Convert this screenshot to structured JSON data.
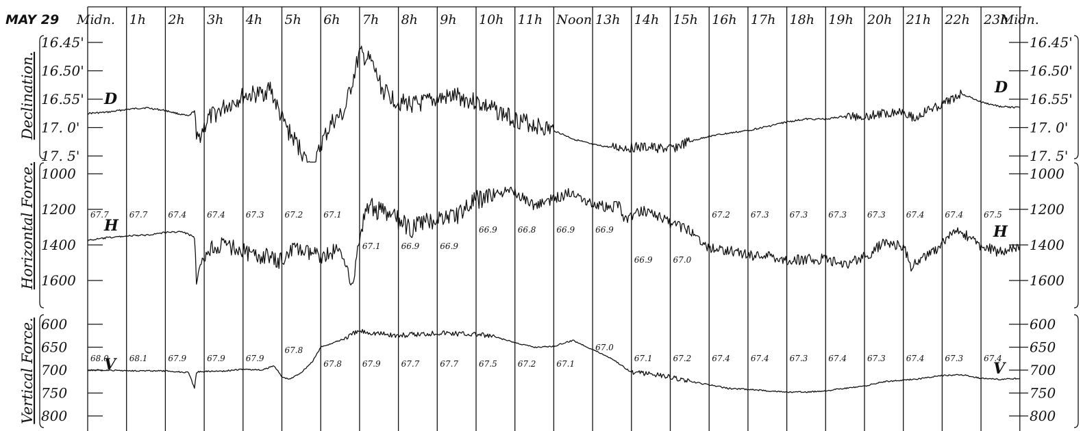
{
  "header": {
    "date": "MAY 29",
    "hours": [
      "Midn.",
      "1h",
      "2h",
      "3h",
      "4h",
      "5h",
      "6h",
      "7h",
      "8h",
      "9h",
      "10h",
      "11h",
      "Noon",
      "13h",
      "14h",
      "15h",
      "16h",
      "17h",
      "18h",
      "19h",
      "20h",
      "21h",
      "22h",
      "23h",
      "Midn."
    ]
  },
  "chart_data": [
    {
      "type": "line",
      "name": "declination",
      "ylabel": "Declination.",
      "curve_letter": "D",
      "x_unit": "hours",
      "left_ticks": [
        "16.45'",
        "16.50'",
        "16.55'",
        "17. 0'",
        "17. 5'"
      ],
      "right_ticks": [
        "16.45'",
        "16.50'",
        "16.55'",
        "17. 0'",
        "17. 5'"
      ],
      "ylim_minutes": [
        45,
        65
      ],
      "tick_values_minutes": [
        45,
        50,
        55,
        60,
        65
      ],
      "x": [
        0,
        0.5,
        1,
        1.5,
        2,
        2.6,
        2.75,
        2.8,
        3.1,
        3.5,
        4,
        4.5,
        4.7,
        4.8,
        5,
        5.2,
        5.5,
        5.8,
        6,
        6.3,
        6.6,
        7,
        7.3,
        7.6,
        8,
        8.5,
        9,
        9.5,
        10,
        10.5,
        11,
        11.5,
        12,
        12.5,
        13,
        13.5,
        14,
        14.5,
        15,
        15.5,
        16,
        16.5,
        17,
        17.5,
        18,
        18.5,
        19,
        19.5,
        20,
        20.5,
        21,
        21.3,
        21.6,
        22,
        22.5,
        23,
        23.5,
        24
      ],
      "y": [
        57.5,
        57.3,
        56.8,
        56.5,
        57.0,
        58.0,
        57.0,
        62.5,
        58.5,
        56.5,
        54.5,
        54.0,
        53.0,
        55.0,
        58.5,
        61.0,
        64.0,
        68.5,
        63.0,
        59.0,
        57.5,
        47.0,
        48.5,
        53.5,
        55.5,
        56.0,
        55.0,
        54.5,
        55.5,
        57.0,
        58.5,
        59.5,
        60.5,
        62.0,
        63.0,
        63.5,
        63.5,
        63.5,
        63.8,
        62.5,
        61.5,
        61.0,
        60.5,
        59.8,
        59.0,
        58.5,
        58.5,
        58.0,
        58.0,
        57.5,
        57.0,
        58.5,
        57.0,
        56.0,
        54.0,
        55.5,
        56.3,
        56.5
      ]
    },
    {
      "type": "line",
      "name": "horizontal_force",
      "ylabel": "Horizontal Force.",
      "curve_letter": "H",
      "x_unit": "hours",
      "left_ticks": [
        "1000",
        "1200",
        "1400",
        "1600"
      ],
      "right_ticks": [
        "1000",
        "1200",
        "1400",
        "1600"
      ],
      "ylim": [
        1000,
        1600
      ],
      "tick_values": [
        1000,
        1200,
        1400,
        1600
      ],
      "x": [
        0,
        0.5,
        1,
        1.5,
        2,
        2.4,
        2.6,
        2.75,
        2.8,
        3.1,
        3.5,
        4,
        4.3,
        4.6,
        4.9,
        5.3,
        5.7,
        6.1,
        6.4,
        6.65,
        6.8,
        7,
        7.2,
        7.5,
        7.9,
        8.3,
        8.6,
        9,
        9.5,
        10,
        10.5,
        11,
        11.5,
        12,
        12.5,
        13,
        13.5,
        13.7,
        13.8,
        14,
        14.3,
        14.6,
        14.9,
        15.2,
        15.6,
        16,
        16.5,
        17,
        17.5,
        18,
        18.5,
        19,
        19.5,
        20,
        20.5,
        21,
        21.2,
        21.5,
        21.8,
        22,
        22.3,
        22.6,
        23,
        23.5,
        24
      ],
      "y": [
        1375,
        1360,
        1350,
        1345,
        1330,
        1325,
        1340,
        1360,
        1610,
        1420,
        1400,
        1430,
        1470,
        1460,
        1500,
        1420,
        1450,
        1460,
        1430,
        1480,
        1650,
        1380,
        1170,
        1210,
        1250,
        1310,
        1280,
        1250,
        1230,
        1150,
        1110,
        1100,
        1180,
        1140,
        1100,
        1170,
        1190,
        1160,
        1260,
        1240,
        1210,
        1220,
        1270,
        1290,
        1330,
        1420,
        1430,
        1460,
        1460,
        1490,
        1480,
        1480,
        1510,
        1470,
        1390,
        1410,
        1520,
        1470,
        1440,
        1390,
        1330,
        1340,
        1410,
        1440,
        1400
      ]
    },
    {
      "type": "line",
      "name": "vertical_force",
      "ylabel": "Vertical Force.",
      "curve_letter": "V",
      "x_unit": "hours",
      "left_ticks": [
        "600",
        "650",
        "700",
        "750",
        "800"
      ],
      "right_ticks": [
        "600",
        "650",
        "700",
        "750",
        "800"
      ],
      "ylim": [
        600,
        800
      ],
      "tick_values": [
        600,
        650,
        700,
        750,
        800
      ],
      "x": [
        0,
        1,
        2,
        2.6,
        2.75,
        2.8,
        2.9,
        3.5,
        4,
        4.5,
        4.8,
        5,
        5.2,
        5.5,
        5.8,
        6,
        6.5,
        7,
        7.5,
        8,
        8.5,
        9,
        9.5,
        10,
        10.5,
        11,
        11.5,
        12,
        12.5,
        13,
        13.5,
        14,
        14.5,
        15,
        15.5,
        16,
        16.5,
        17,
        17.5,
        18,
        18.5,
        19,
        19.5,
        20,
        20.5,
        21,
        21.5,
        22,
        22.5,
        23,
        23.5,
        24
      ],
      "y": [
        700,
        701,
        702,
        705,
        740,
        705,
        703,
        702,
        698,
        700,
        690,
        715,
        720,
        705,
        680,
        650,
        635,
        615,
        620,
        625,
        622,
        618,
        620,
        622,
        628,
        640,
        650,
        648,
        635,
        655,
        675,
        705,
        708,
        715,
        725,
        732,
        740,
        742,
        745,
        748,
        748,
        745,
        740,
        735,
        725,
        722,
        718,
        712,
        710,
        718,
        720,
        718
      ]
    }
  ],
  "temperatures": {
    "row1": [
      "67.7",
      "67.7",
      "67.4",
      "67.4",
      "67.3",
      "67.2",
      "67.1",
      "67.1",
      "66.9",
      "66.9",
      "66.9",
      "66.8",
      "66.9",
      "66.9",
      "66.9",
      "67.0",
      "67.2",
      "67.3",
      "67.3",
      "67.3",
      "67.3",
      "67.4",
      "67.4",
      "67.5"
    ],
    "row2": [
      "68.0",
      "68.1",
      "67.9",
      "67.9",
      "67.9",
      "67.8",
      "67.8",
      "67.9",
      "67.7",
      "67.7",
      "67.5",
      "67.2",
      "67.1",
      "67.0",
      "67.1",
      "67.2",
      "67.4",
      "67.4",
      "67.3",
      "67.4",
      "67.3",
      "67.4",
      "67.3",
      "67.4"
    ]
  }
}
